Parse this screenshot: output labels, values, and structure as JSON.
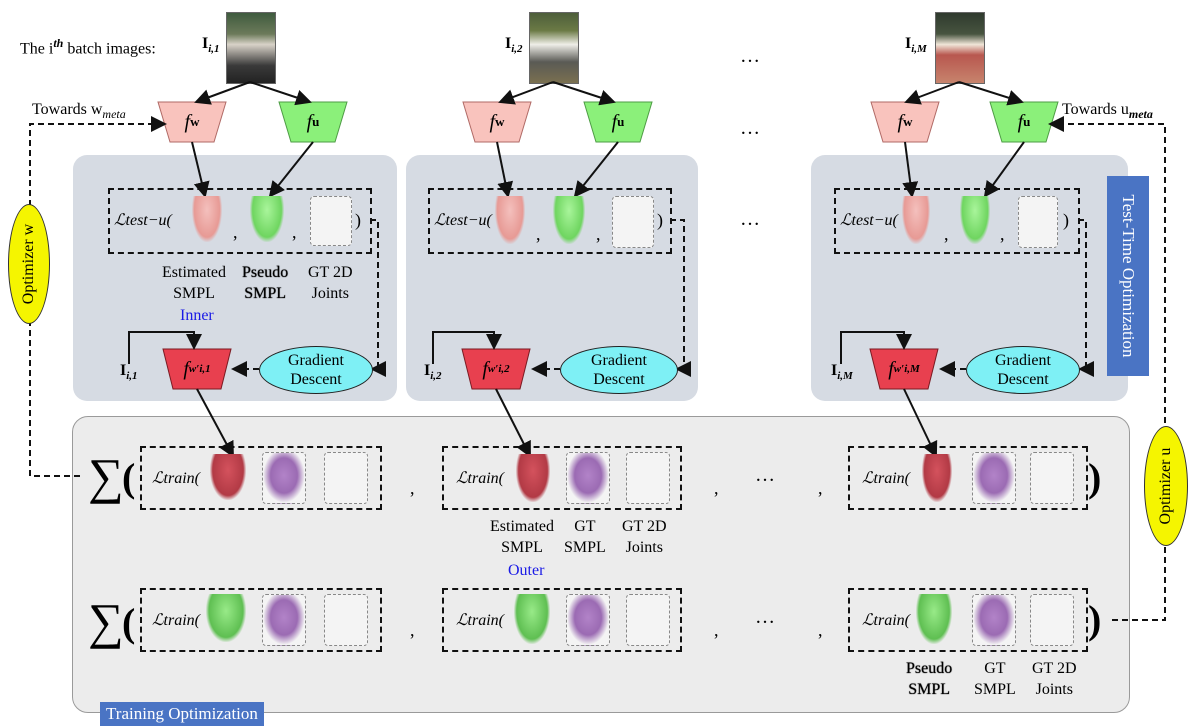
{
  "header": {
    "batch_label": "The i",
    "batch_sup": "th",
    "batch_suffix": " batch images:",
    "img1": "I",
    "img1_sub": "i,1",
    "img2": "I",
    "img2_sub": "i,2",
    "imgM": "I",
    "imgM_sub": "i,M",
    "ellipsis": "…",
    "towards_w": "Towards w",
    "towards_w_sub": "meta",
    "towards_u": "Towards u",
    "towards_u_sub": "meta"
  },
  "networks": {
    "fw": "f",
    "fw_sub": "w",
    "fu": "f",
    "fu_sub": "u",
    "fw1": "f",
    "fw1_sub": "w′i,1",
    "fw2": "f",
    "fw2_sub": "w′i,2",
    "fwM": "f",
    "fwM_sub": "w′i,M"
  },
  "test_time": {
    "loss": "ℒtest−u(",
    "close": ")",
    "comma": ",",
    "estimated": "Estimated",
    "smpl": "SMPL",
    "pseudo": "Pseudo",
    "gt2d": "GT 2D",
    "joints": "Joints",
    "inner": "Inner",
    "gradient": "Gradient",
    "descent": "Descent",
    "in1": "I",
    "in1_sub": "i,1",
    "in2": "I",
    "in2_sub": "i,2",
    "inM": "I",
    "inM_sub": "i,M",
    "panel_tag": "Test-Time Optimization"
  },
  "training": {
    "loss": "ℒtrain(",
    "close": ")",
    "comma": ",",
    "sigma": "∑",
    "estimated": "Estimated",
    "smpl": "SMPL",
    "gt": "GT",
    "gt2d": "GT 2D",
    "joints": "Joints",
    "outer": "Outer",
    "pseudo": "Pseudo",
    "panel_tag": "Training Optimization"
  },
  "optimizers": {
    "w": "Optimizer w",
    "u": "Optimizer u"
  },
  "colors": {
    "fw_fill": "#f9c3bd",
    "fu_fill": "#8bf07a",
    "fw_prime_fill": "#e8404f",
    "oval_fill": "#7ef0f5",
    "optimizer_fill": "#f5f500",
    "tag_fill": "#4a74c4"
  }
}
